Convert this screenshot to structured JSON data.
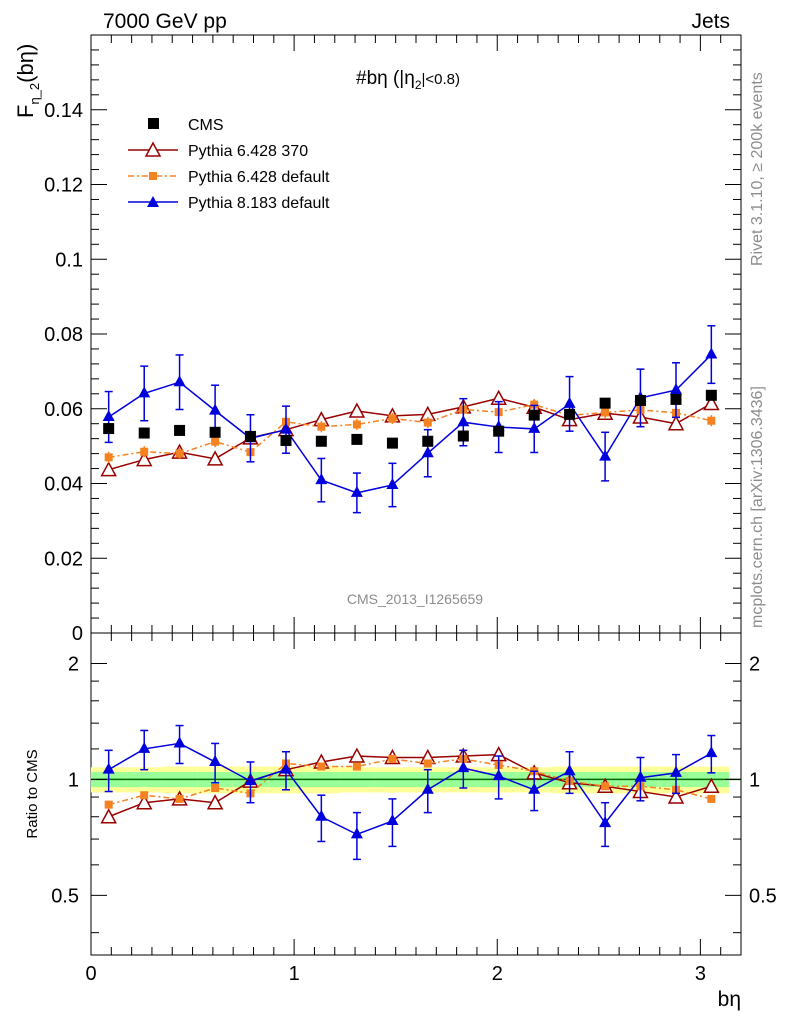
{
  "header": {
    "left": "7000 GeV pp",
    "right": "Jets"
  },
  "plot_title": "#bη (|η",
  "plot_title_sub": "2",
  "plot_title_tail": "|<0.8)",
  "side_text": {
    "top": "Rivet 3.1.10, ≥ 200k events",
    "bottom": "mcplots.cern.ch [arXiv:1306.3436]"
  },
  "watermark": "CMS_2013_I1265659",
  "legend": {
    "cms": "CMS",
    "p6_370": "Pythia 6.428 370",
    "p6_default": "Pythia 6.428 default",
    "p8_default": "Pythia 8.183 default"
  },
  "colors": {
    "cms": "#000000",
    "p6_370": "#990000",
    "p6_default": "#f58220",
    "p8_default": "#0000dd",
    "band_inner": "#99ff99",
    "band_outer": "#ffff99",
    "ratio_line": "#006600"
  },
  "chart_data": [
    {
      "type": "scatter",
      "panel": "main",
      "ylabel_main": "F",
      "ylabel_sub": "η_2",
      "ylabel_tail": "(bη)",
      "xlim": [
        0,
        3.2
      ],
      "ylim": [
        0,
        0.16
      ],
      "yticks": [
        0,
        0.02,
        0.04,
        0.06,
        0.08,
        0.1,
        0.12,
        0.14
      ],
      "ytick_labels": [
        "0",
        "0.02",
        "0.04",
        "0.06",
        "0.08",
        "0.1",
        "0.12",
        "0.14"
      ],
      "x": [
        0.087,
        0.262,
        0.436,
        0.611,
        0.785,
        0.96,
        1.134,
        1.309,
        1.484,
        1.658,
        1.833,
        2.007,
        2.182,
        2.356,
        2.531,
        2.705,
        2.88,
        3.054
      ],
      "series": [
        {
          "name": "CMS",
          "values": [
            0.0547,
            0.0535,
            0.0542,
            0.0537,
            0.0526,
            0.0515,
            0.0513,
            0.0518,
            0.0508,
            0.0513,
            0.0527,
            0.054,
            0.0583,
            0.0585,
            0.0615,
            0.0622,
            0.0625,
            0.0636
          ]
        },
        {
          "name": "Pythia 6.428 370",
          "values": [
            0.0437,
            0.0464,
            0.0484,
            0.0466,
            0.0522,
            0.0544,
            0.0571,
            0.0594,
            0.0581,
            0.0585,
            0.0605,
            0.0628,
            0.0604,
            0.0571,
            0.0588,
            0.0578,
            0.056,
            0.0614
          ],
          "errors": [
            0.0015,
            0.0015,
            0.0015,
            0.0015,
            0.0015,
            0.0015,
            0.0015,
            0.0015,
            0.0015,
            0.0015,
            0.0015,
            0.0015,
            0.0015,
            0.0015,
            0.0015,
            0.0015,
            0.0015,
            0.0015
          ]
        },
        {
          "name": "Pythia 6.428 default",
          "values": [
            0.047,
            0.0485,
            0.048,
            0.0512,
            0.0484,
            0.0565,
            0.0552,
            0.0558,
            0.0574,
            0.0563,
            0.0598,
            0.0591,
            0.0611,
            0.0582,
            0.059,
            0.0597,
            0.0589,
            0.0568
          ],
          "errors": [
            0.0015,
            0.0015,
            0.0015,
            0.0015,
            0.0015,
            0.0015,
            0.0015,
            0.0015,
            0.0015,
            0.0015,
            0.0015,
            0.0015,
            0.0015,
            0.0015,
            0.0015,
            0.0015,
            0.0015,
            0.0015
          ]
        },
        {
          "name": "Pythia 8.183 default",
          "values": [
            0.0578,
            0.0641,
            0.0671,
            0.0595,
            0.0521,
            0.0544,
            0.0409,
            0.0375,
            0.0396,
            0.0481,
            0.0564,
            0.0551,
            0.0546,
            0.0613,
            0.0472,
            0.0629,
            0.065,
            0.0745
          ],
          "errors": [
            0.0068,
            0.0073,
            0.0073,
            0.0068,
            0.0063,
            0.0063,
            0.0058,
            0.0053,
            0.0058,
            0.0063,
            0.0063,
            0.0068,
            0.0063,
            0.0073,
            0.0065,
            0.0077,
            0.0073,
            0.0077
          ]
        }
      ]
    },
    {
      "type": "scatter",
      "panel": "ratio",
      "ylabel": "Ratio to CMS",
      "xlabel": "bη",
      "xlim": [
        0,
        3.2
      ],
      "ylim": [
        0.35,
        2.4
      ],
      "log_y": true,
      "yticks": [
        0.5,
        1,
        2
      ],
      "ytick_labels": [
        "0.5",
        "1",
        "2"
      ],
      "xticks": [
        0,
        1,
        2,
        3
      ],
      "xtick_labels": [
        "0",
        "1",
        "2",
        "3"
      ],
      "x": [
        0.087,
        0.262,
        0.436,
        0.611,
        0.785,
        0.96,
        1.134,
        1.309,
        1.484,
        1.658,
        1.833,
        2.007,
        2.182,
        2.356,
        2.531,
        2.705,
        2.88,
        3.054
      ],
      "band_inner": [
        0.045,
        0.045,
        0.045,
        0.045,
        0.045,
        0.045,
        0.045,
        0.045,
        0.045,
        0.045,
        0.045,
        0.045,
        0.045,
        0.045,
        0.045,
        0.045,
        0.045,
        0.045
      ],
      "band_outer": [
        0.075,
        0.075,
        0.08,
        0.08,
        0.08,
        0.08,
        0.08,
        0.075,
        0.075,
        0.075,
        0.075,
        0.075,
        0.075,
        0.08,
        0.08,
        0.08,
        0.08,
        0.08
      ],
      "series": [
        {
          "name": "Pythia 6.428 370",
          "values": [
            0.8,
            0.87,
            0.89,
            0.87,
            0.99,
            1.06,
            1.11,
            1.15,
            1.14,
            1.14,
            1.15,
            1.16,
            1.04,
            0.98,
            0.96,
            0.93,
            0.9,
            0.96
          ]
        },
        {
          "name": "Pythia 6.428 default",
          "values": [
            0.86,
            0.91,
            0.89,
            0.95,
            0.92,
            1.1,
            1.08,
            1.08,
            1.13,
            1.1,
            1.13,
            1.09,
            1.05,
            0.99,
            0.96,
            0.96,
            0.94,
            0.89
          ]
        },
        {
          "name": "Pythia 8.183 default",
          "values": [
            1.06,
            1.2,
            1.24,
            1.11,
            0.99,
            1.06,
            0.8,
            0.72,
            0.78,
            0.94,
            1.07,
            1.02,
            0.94,
            1.05,
            0.77,
            1.01,
            1.04,
            1.17
          ],
          "errors": [
            0.13,
            0.14,
            0.14,
            0.13,
            0.12,
            0.12,
            0.11,
            0.1,
            0.11,
            0.12,
            0.12,
            0.13,
            0.11,
            0.13,
            0.1,
            0.13,
            0.12,
            0.13
          ]
        }
      ]
    }
  ]
}
